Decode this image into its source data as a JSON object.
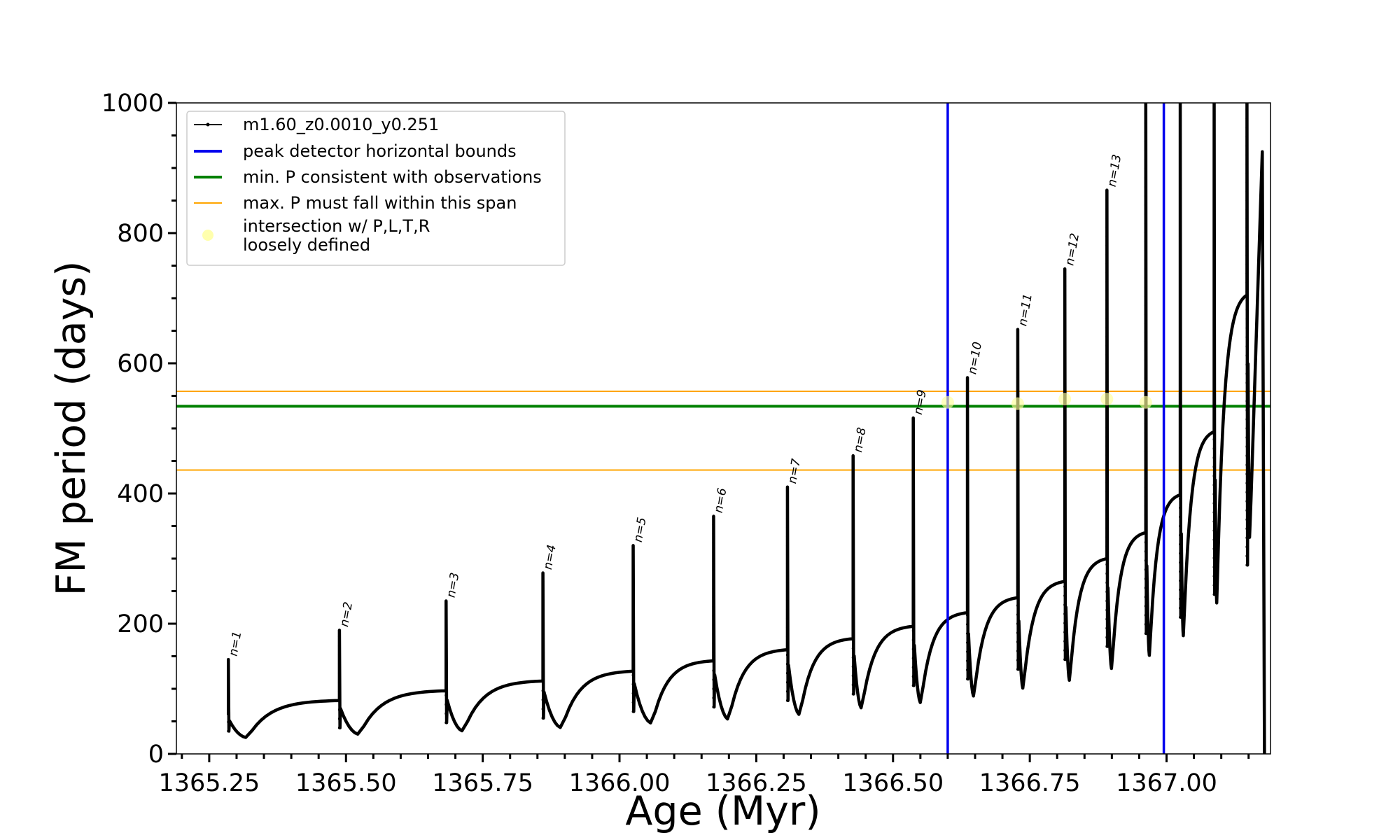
{
  "chart_data": {
    "type": "line",
    "title": "",
    "xlabel": "Age (Myr)",
    "ylabel": "FM period (days)",
    "xlim": [
      1365.19,
      1367.19
    ],
    "ylim": [
      0,
      1000
    ],
    "x_major_ticks": [
      1365.25,
      1365.5,
      1365.75,
      1366.0,
      1366.25,
      1366.5,
      1366.75,
      1367.0
    ],
    "x_tick_labels": [
      "1365.25",
      "1365.50",
      "1365.75",
      "1366.00",
      "1366.25",
      "1366.50",
      "1366.75",
      "1367.00"
    ],
    "x_minor_ticks": [
      1365.2,
      1365.3,
      1365.35,
      1365.4,
      1365.45,
      1365.55,
      1365.6,
      1365.65,
      1365.7,
      1365.8,
      1365.85,
      1365.9,
      1365.95,
      1366.05,
      1366.1,
      1366.15,
      1366.2,
      1366.3,
      1366.35,
      1366.4,
      1366.45,
      1366.55,
      1366.6,
      1366.65,
      1366.7,
      1366.8,
      1366.85,
      1366.9,
      1366.95,
      1367.05,
      1367.1,
      1367.15
    ],
    "y_major_ticks": [
      0,
      200,
      400,
      600,
      800,
      1000
    ],
    "y_tick_labels": [
      "0",
      "200",
      "400",
      "600",
      "800",
      "1000"
    ],
    "y_minor_ticks": [
      50,
      100,
      150,
      250,
      300,
      350,
      450,
      500,
      550,
      650,
      700,
      750,
      850,
      900,
      950
    ],
    "grid": false,
    "legend_position": "upper-left",
    "legend": [
      {
        "label": "m1.60_z0.0010_y0.251",
        "style": "line-marker",
        "color": "#000000"
      },
      {
        "label": "peak detector horizontal bounds",
        "style": "line",
        "color": "#0000ee"
      },
      {
        "label": "min. P consistent with observations",
        "style": "line",
        "color": "#008000"
      },
      {
        "label": "max. P must fall within this span",
        "style": "line-thin",
        "color": "#ffa500"
      },
      {
        "label": "intersection w/ P,L,T,R\nloosely defined",
        "style": "marker",
        "color": "#ffff99"
      }
    ],
    "vertical_lines": [
      {
        "x": 1366.6,
        "color": "#0000ee",
        "name": "peak detector horizontal bounds"
      },
      {
        "x": 1366.995,
        "color": "#0000ee",
        "name": "peak detector horizontal bounds"
      }
    ],
    "horizontal_lines": [
      {
        "y": 557,
        "color": "#ffa500",
        "name": "max. P must fall within this span"
      },
      {
        "y": 534,
        "color": "#008000",
        "name": "min. P consistent with observations"
      },
      {
        "y": 436,
        "color": "#ffa500",
        "name": "max. P must fall within this span"
      }
    ],
    "pulses": [
      {
        "label": "n=1",
        "x": 1365.285,
        "peak": 145,
        "drop": 35,
        "start": 60,
        "min": 25,
        "min_x": 1365.32
      },
      {
        "label": "n=2",
        "x": 1365.488,
        "peak": 190,
        "drop": 40,
        "start": 82,
        "min": 30,
        "min_x": 1365.525
      },
      {
        "label": "n=3",
        "x": 1365.683,
        "peak": 235,
        "drop": 48,
        "start": 97,
        "min": 35,
        "min_x": 1365.715
      },
      {
        "label": "n=4",
        "x": 1365.86,
        "peak": 278,
        "drop": 55,
        "start": 112,
        "min": 40,
        "min_x": 1365.895
      },
      {
        "label": "n=5",
        "x": 1366.025,
        "peak": 320,
        "drop": 65,
        "start": 127,
        "min": 47,
        "min_x": 1366.06
      },
      {
        "label": "n=6",
        "x": 1366.172,
        "peak": 365,
        "drop": 72,
        "start": 143,
        "min": 53,
        "min_x": 1366.2
      },
      {
        "label": "n=7",
        "x": 1366.307,
        "peak": 410,
        "drop": 82,
        "start": 160,
        "min": 60,
        "min_x": 1366.33
      },
      {
        "label": "n=8",
        "x": 1366.427,
        "peak": 458,
        "drop": 92,
        "start": 177,
        "min": 70,
        "min_x": 1366.443
      },
      {
        "label": "n=9",
        "x": 1366.537,
        "peak": 516,
        "drop": 105,
        "start": 196,
        "min": 78,
        "min_x": 1366.551
      },
      {
        "label": "n=10",
        "x": 1366.636,
        "peak": 578,
        "drop": 115,
        "start": 217,
        "min": 88,
        "min_x": 1366.648
      },
      {
        "label": "n=11",
        "x": 1366.728,
        "peak": 652,
        "drop": 130,
        "start": 240,
        "min": 100,
        "min_x": 1366.738
      },
      {
        "label": "n=12",
        "x": 1366.814,
        "peak": 745,
        "drop": 145,
        "start": 265,
        "min": 112,
        "min_x": 1366.823
      },
      {
        "label": "n=13",
        "x": 1366.891,
        "peak": 866,
        "drop": 165,
        "start": 300,
        "min": 130,
        "min_x": 1366.9
      },
      {
        "label": "",
        "x": 1366.962,
        "peak": 1000,
        "drop": 185,
        "start": 340,
        "min": 150,
        "min_x": 1366.969
      },
      {
        "label": "",
        "x": 1367.025,
        "peak": 1000,
        "drop": 210,
        "start": 398,
        "min": 180,
        "min_x": 1367.031
      },
      {
        "label": "",
        "x": 1367.087,
        "peak": 1000,
        "drop": 245,
        "start": 495,
        "min": 230,
        "min_x": 1367.092
      },
      {
        "label": "",
        "x": 1367.147,
        "peak": 1000,
        "drop": 290,
        "start": 705,
        "min": 330,
        "min_x": 1367.152
      }
    ],
    "final_segment": {
      "x_start": 1367.152,
      "x_end": 1367.179,
      "y_start": 330,
      "y_peak": 925,
      "y_end": 0
    },
    "intersections": [
      {
        "x": 1366.6,
        "y": 540
      },
      {
        "x": 1366.728,
        "y": 538
      },
      {
        "x": 1366.814,
        "y": 545
      },
      {
        "x": 1366.891,
        "y": 545
      },
      {
        "x": 1366.962,
        "y": 540
      }
    ]
  }
}
